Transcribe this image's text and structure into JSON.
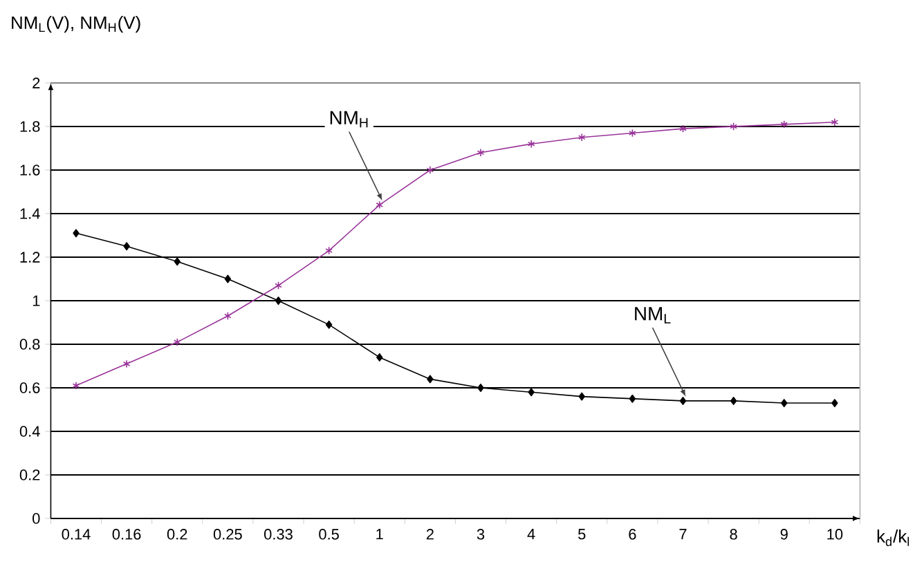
{
  "chart_data": {
    "type": "line",
    "ylabel": "NM$_{L}$(V), NM$_{H}$(V)",
    "xlabel": "k$_{d}$/k$_{l}$",
    "categories": [
      "0.14",
      "0.16",
      "0.2",
      "0.25",
      "0.33",
      "0.5",
      "1",
      "2",
      "3",
      "4",
      "5",
      "6",
      "7",
      "8",
      "9",
      "10"
    ],
    "series": [
      {
        "color": "#000000",
        "marker": "diamond",
        "values": [
          1.31,
          1.25,
          1.18,
          1.1,
          1.0,
          0.89,
          0.74,
          0.64,
          0.6,
          0.58,
          0.56,
          0.55,
          0.54,
          0.54,
          0.53,
          0.53
        ]
      },
      {
        "color": "#993399",
        "marker": "cross",
        "values": [
          0.61,
          0.71,
          0.81,
          0.93,
          1.07,
          1.23,
          1.44,
          1.6,
          1.68,
          1.72,
          1.75,
          1.77,
          1.79,
          1.8,
          1.81,
          1.82
        ]
      }
    ],
    "ylim": [
      0,
      2
    ],
    "yticks": [
      0,
      0.2,
      0.4,
      0.6,
      0.8,
      1,
      1.2,
      1.4,
      1.6,
      1.8,
      2
    ],
    "grid": "y",
    "annotations": [
      {
        "text": "NM$_{H}$",
        "x": "1",
        "y": 1.44
      },
      {
        "text": "NM$_{L}$",
        "x": "7",
        "y": 0.54
      }
    ]
  }
}
